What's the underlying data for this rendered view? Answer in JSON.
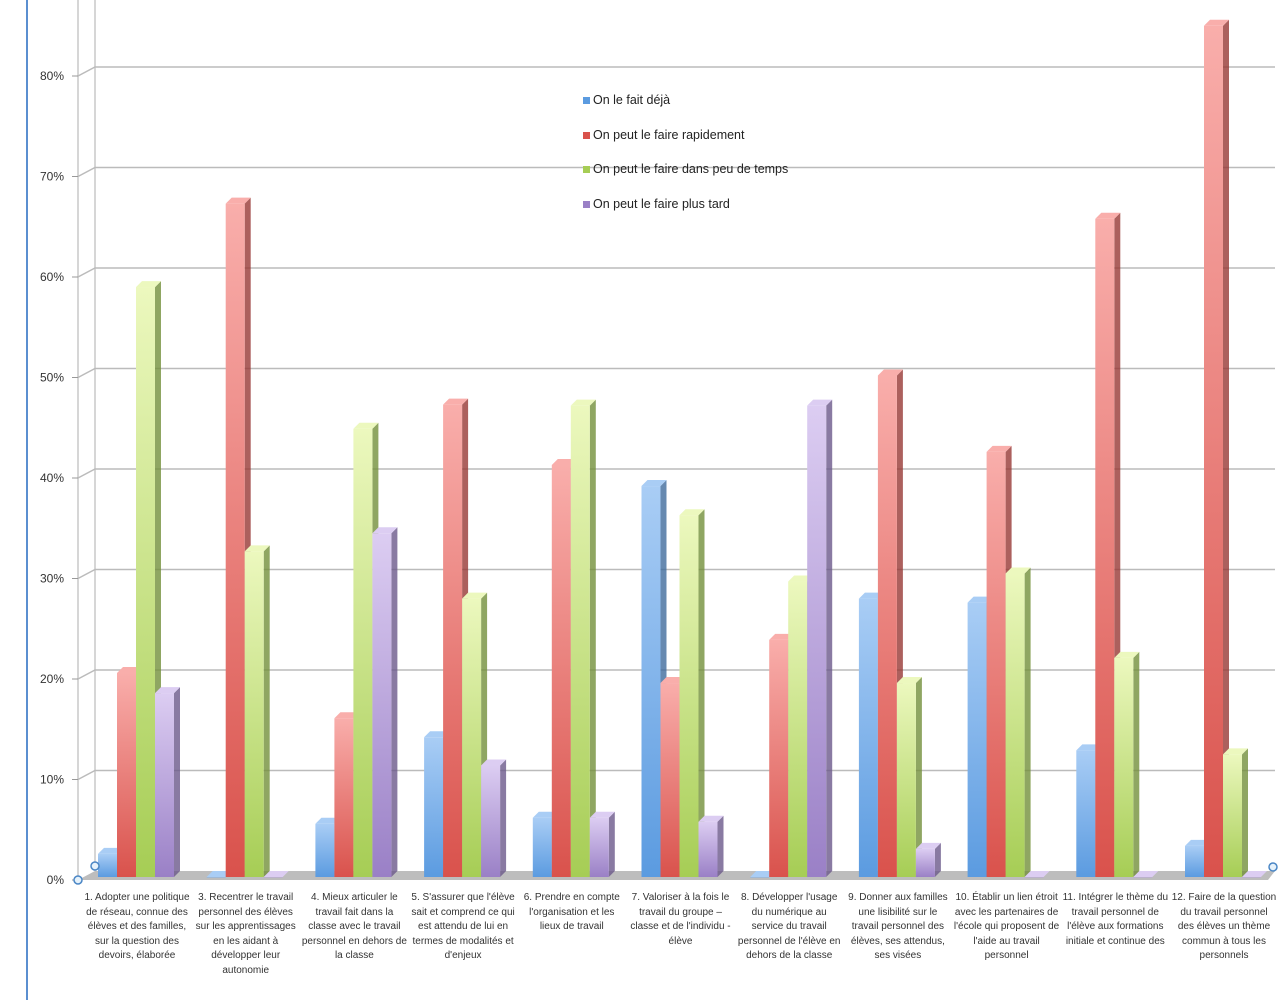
{
  "chart_data": {
    "type": "bar",
    "style": "3d-clustered-column",
    "title": "",
    "xlabel": "",
    "ylabel": "",
    "ylim": [
      0,
      85
    ],
    "yticks": [
      "0%",
      "10%",
      "20%",
      "30%",
      "40%",
      "50%",
      "60%",
      "70%",
      "80%"
    ],
    "ytick_values": [
      0,
      10,
      20,
      30,
      40,
      50,
      60,
      70,
      80
    ],
    "grid": true,
    "legend_position": "top-center",
    "categories": [
      "1. Adopter une politique de réseau, connue des élèves et des familles, sur la question des devoirs, élaborée",
      "3. Recentrer le travail personnel des élèves sur les apprentissages en les aidant à développer leur autonomie",
      "4. Mieux articuler le travail fait dans la classe avec le travail personnel en dehors de la classe",
      "5. S'assurer que l'élève sait et comprend ce qui est attendu de lui en termes de modalités et d'enjeux",
      "6. Prendre en compte l'organisation et les lieux de travail",
      "7. Valoriser à la fois le travail du groupe – classe et de l'individu - élève",
      "8. Développer l'usage du numérique au service du travail personnel de l'élève en dehors de la classe",
      "9. Donner aux familles une lisibilité sur le travail personnel des élèves, ses attendus, ses visées",
      "10. Établir un lien étroit avec les partenaires de l'école qui proposent de l'aide au travail personnel",
      "11. Intégrer le thème du travail personnel de l'élève aux formations initiale et continue des",
      "12. Faire de la question du travail personnel des élèves un thème  commun à tous les personnels"
    ],
    "series": [
      {
        "name": "On le fait déjà",
        "color": "#5b9be0",
        "light": "#a9cdf5",
        "values": [
          2.3,
          0,
          5.3,
          13.9,
          5.9,
          38.9,
          0,
          27.7,
          27.3,
          12.6,
          3.1
        ]
      },
      {
        "name": "On peut le faire rapidement",
        "color": "#d9524c",
        "light": "#f9aeab",
        "values": [
          20.3,
          67,
          15.8,
          47,
          41,
          19.3,
          23.6,
          49.9,
          42.3,
          65.5,
          84.7
        ]
      },
      {
        "name": "On peut le faire dans peu de temps",
        "color": "#a6cd55",
        "light": "#ecf8be",
        "values": [
          58.7,
          32.4,
          44.6,
          27.7,
          46.9,
          36,
          29.4,
          19.3,
          30.2,
          21.8,
          12.2
        ]
      },
      {
        "name": "On peut le faire plus tard",
        "color": "#9a80c6",
        "light": "#dccdf2",
        "values": [
          18.3,
          0,
          34.2,
          11.1,
          5.9,
          5.5,
          46.9,
          2.8,
          0,
          0,
          0
        ]
      }
    ]
  }
}
